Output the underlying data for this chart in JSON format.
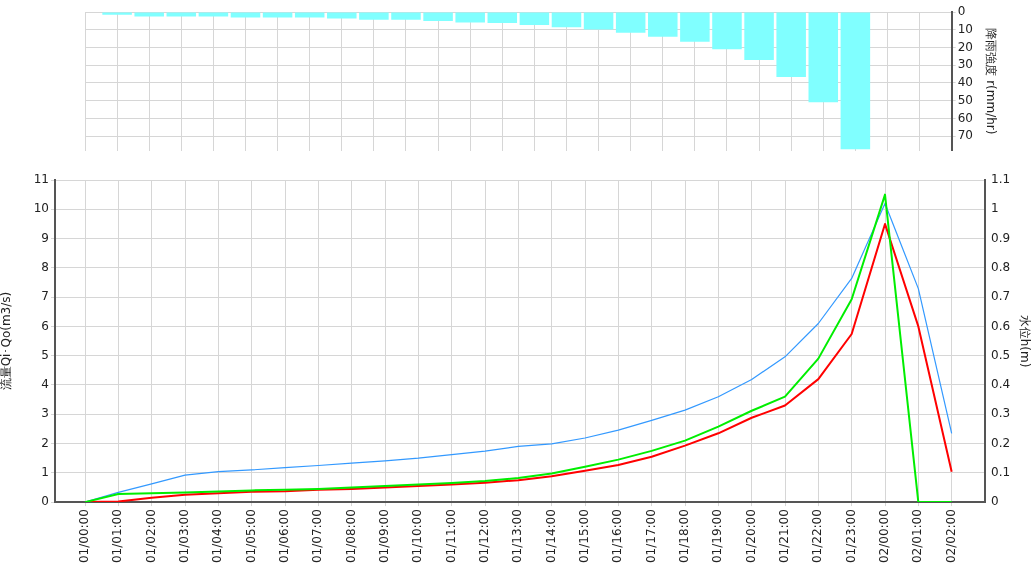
{
  "chart_data": [
    {
      "type": "bar",
      "y2label": "降雨強度 r(mm/hr)",
      "categories": [
        null,
        null,
        null,
        null,
        null,
        null,
        null,
        null,
        null,
        null,
        null,
        null,
        null,
        null,
        null,
        null,
        null,
        null,
        null,
        null,
        null,
        null,
        null,
        null,
        null,
        null
      ],
      "series": [
        {
          "color": "#80ffff",
          "axis": "y2",
          "values": [
            1.6,
            2.6,
            2.6,
            2.6,
            3.1,
            3.1,
            3.1,
            3.7,
            4.4,
            4.4,
            5.1,
            5.9,
            6.2,
            7.3,
            8.6,
            9.9,
            11.7,
            13.9,
            16.8,
            21,
            27.1,
            36.6,
            50.9,
            77.3,
            0,
            0
          ]
        }
      ],
      "y2lim": [
        78.2,
        0
      ],
      "y2ticks": [
        0,
        10,
        20,
        30,
        40,
        50,
        60,
        70
      ],
      "grid": true,
      "tick_labels": "y"
    },
    {
      "type": "line",
      "ylabel": "流量Qi･Qo(m3/s)",
      "y2label": "水位h(m)",
      "categories": [
        "01/00:00",
        "01/01:00",
        "01/02:00",
        "01/03:00",
        "01/04:00",
        "01/05:00",
        "01/06:00",
        "01/07:00",
        "01/08:00",
        "01/09:00",
        "01/10:00",
        "01/11:00",
        "01/12:00",
        "01/13:00",
        "01/14:00",
        "01/15:00",
        "01/16:00",
        "01/17:00",
        "01/18:00",
        "01/19:00",
        "01/20:00",
        "01/21:00",
        "01/22:00",
        "01/23:00",
        "02/00:00",
        "02/01:00",
        "02/02:00"
      ],
      "series": [
        {
          "color": "#00ee00",
          "values": [
            0,
            0.28,
            0.3,
            0.33,
            0.36,
            0.4,
            0.42,
            0.45,
            0.5,
            0.55,
            0.6,
            0.65,
            0.72,
            0.82,
            0.98,
            1.21,
            1.45,
            1.75,
            2.1,
            2.58,
            3.12,
            3.6,
            4.9,
            6.93,
            10.5,
            0,
            0
          ]
        },
        {
          "color": "#ff0000",
          "values": [
            0,
            0.02,
            0.15,
            0.25,
            0.3,
            0.35,
            0.37,
            0.42,
            0.45,
            0.5,
            0.55,
            0.6,
            0.66,
            0.75,
            0.88,
            1.07,
            1.27,
            1.55,
            1.93,
            2.35,
            2.88,
            3.3,
            4.2,
            5.74,
            9.5,
            6,
            1.04
          ]
        },
        {
          "color": "#3399ff",
          "axis": "y2",
          "values": [
            0,
            0.033,
            0.062,
            0.092,
            0.104,
            0.11,
            0.118,
            0.125,
            0.133,
            0.141,
            0.15,
            0.162,
            0.174,
            0.19,
            0.199,
            0.219,
            0.246,
            0.279,
            0.314,
            0.36,
            0.419,
            0.496,
            0.61,
            0.764,
            1.02,
            0.729,
            0.235
          ]
        }
      ],
      "ylim": [
        0,
        11
      ],
      "yticks": [
        0,
        1,
        2,
        3,
        4,
        5,
        6,
        7,
        8,
        9,
        10,
        11
      ],
      "y2lim": [
        0,
        1.1
      ],
      "y2ticks": [
        0,
        0.1,
        0.2,
        0.3,
        0.4,
        0.5,
        0.6,
        0.7,
        0.8,
        0.9,
        1,
        1.1
      ],
      "grid": true
    }
  ]
}
